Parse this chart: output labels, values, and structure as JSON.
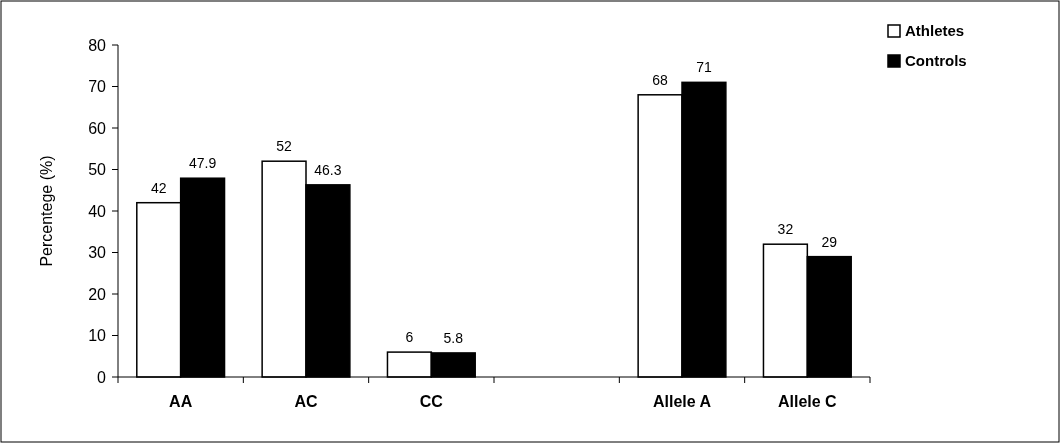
{
  "chart_data": {
    "type": "bar",
    "ylabel": "Percentege (%)",
    "categories": [
      "AA",
      "AC",
      "CC",
      null,
      "Allele A",
      "Allele C"
    ],
    "series": [
      {
        "name": "Athletes",
        "color": "#ffffff",
        "values": [
          42,
          52,
          6,
          null,
          68,
          32
        ]
      },
      {
        "name": "Controls",
        "color": "#000000",
        "values": [
          47.9,
          46.3,
          5.8,
          null,
          71,
          29
        ]
      }
    ],
    "ylim": [
      0,
      80
    ],
    "yticks": [
      0,
      10,
      20,
      30,
      40,
      50,
      60,
      70,
      80
    ],
    "data_labels": true,
    "legend": "top right",
    "grid": false
  }
}
